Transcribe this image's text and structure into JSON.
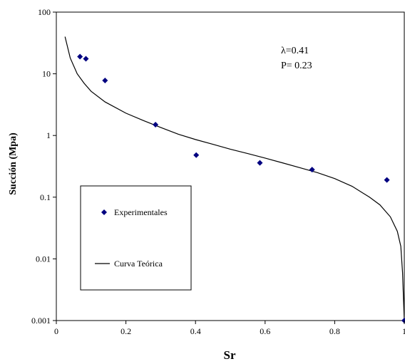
{
  "chart_data": {
    "type": "scatter",
    "xlabel": "Sr",
    "ylabel": "Succión (Mpa)",
    "xlim": [
      0,
      1
    ],
    "ylim": [
      0.001,
      100
    ],
    "yscale": "log",
    "grid": false,
    "x_ticks": [
      "0",
      "0.2",
      "0.4",
      "0.6",
      "0.8",
      "1"
    ],
    "y_ticks": [
      "0.001",
      "0.01",
      "0.1",
      "1",
      "10",
      "100"
    ],
    "annotations": [
      "λ=0.41",
      "P= 0.23"
    ],
    "legend": {
      "placement": "lower-left",
      "entries": [
        "Experimentales",
        "Curva Teórica"
      ]
    },
    "series": [
      {
        "name": "Experimentales",
        "kind": "scatter",
        "marker": "diamond",
        "color": "#000080",
        "points": [
          {
            "x": 0.068,
            "y": 19
          },
          {
            "x": 0.085,
            "y": 17.5
          },
          {
            "x": 0.14,
            "y": 7.8
          },
          {
            "x": 0.285,
            "y": 1.5
          },
          {
            "x": 0.402,
            "y": 0.48
          },
          {
            "x": 0.585,
            "y": 0.36
          },
          {
            "x": 0.735,
            "y": 0.28
          },
          {
            "x": 0.95,
            "y": 0.19
          },
          {
            "x": 1.0,
            "y": 0.001
          }
        ]
      },
      {
        "name": "Curva Teórica",
        "kind": "line",
        "color": "#000000",
        "points": [
          {
            "x": 0.025,
            "y": 40
          },
          {
            "x": 0.04,
            "y": 18
          },
          {
            "x": 0.06,
            "y": 10
          },
          {
            "x": 0.08,
            "y": 7
          },
          {
            "x": 0.1,
            "y": 5.2
          },
          {
            "x": 0.14,
            "y": 3.5
          },
          {
            "x": 0.2,
            "y": 2.3
          },
          {
            "x": 0.25,
            "y": 1.75
          },
          {
            "x": 0.3,
            "y": 1.35
          },
          {
            "x": 0.35,
            "y": 1.05
          },
          {
            "x": 0.4,
            "y": 0.86
          },
          {
            "x": 0.45,
            "y": 0.72
          },
          {
            "x": 0.5,
            "y": 0.6
          },
          {
            "x": 0.55,
            "y": 0.51
          },
          {
            "x": 0.6,
            "y": 0.43
          },
          {
            "x": 0.65,
            "y": 0.36
          },
          {
            "x": 0.7,
            "y": 0.3
          },
          {
            "x": 0.75,
            "y": 0.25
          },
          {
            "x": 0.8,
            "y": 0.2
          },
          {
            "x": 0.85,
            "y": 0.15
          },
          {
            "x": 0.9,
            "y": 0.1
          },
          {
            "x": 0.93,
            "y": 0.075
          },
          {
            "x": 0.96,
            "y": 0.048
          },
          {
            "x": 0.98,
            "y": 0.028
          },
          {
            "x": 0.99,
            "y": 0.016
          },
          {
            "x": 0.995,
            "y": 0.006
          },
          {
            "x": 1.0,
            "y": 0.001
          }
        ]
      }
    ]
  }
}
